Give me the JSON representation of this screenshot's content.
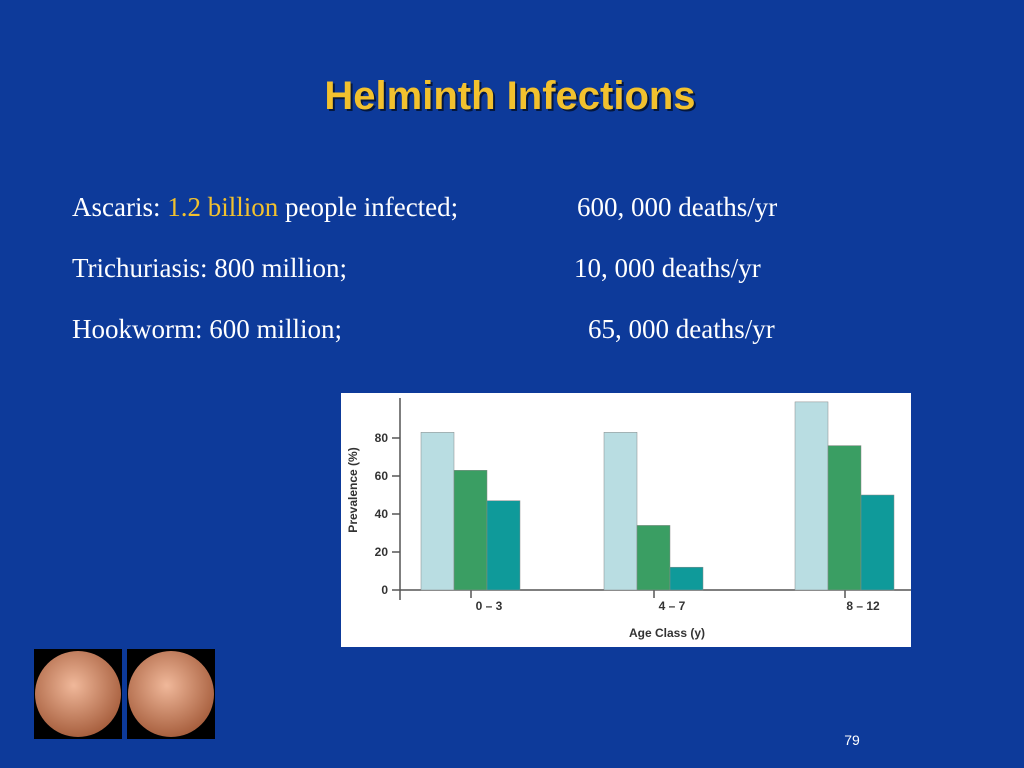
{
  "slide": {
    "title": "Helminth Infections",
    "lines": [
      {
        "label": "Ascaris:",
        "highlight": "1.2 billion",
        "rest": "people infected;",
        "deaths": "600, 000 deaths/yr"
      },
      {
        "label": "Trichuriasis: 800 million;",
        "deaths": "10, 000 deaths/yr"
      },
      {
        "label": "Hookworm: 600 million;",
        "deaths": "65, 000 deaths/yr"
      }
    ],
    "page_number": "79"
  },
  "chart_data": {
    "type": "bar",
    "ylabel": "Prevalence (%)",
    "xlabel": "Age Class (y)",
    "categories": [
      "0 – 3",
      "4 – 7",
      "8 – 12"
    ],
    "series": [
      {
        "color": "#b9dde2",
        "values": [
          83,
          83,
          99
        ]
      },
      {
        "color": "#3a9e63",
        "values": [
          63,
          34,
          76
        ]
      },
      {
        "color": "#0f9a9a",
        "values": [
          47,
          12,
          50
        ]
      }
    ],
    "ylim": [
      0,
      100
    ],
    "yticks": [
      0,
      20,
      40,
      60,
      80
    ]
  }
}
